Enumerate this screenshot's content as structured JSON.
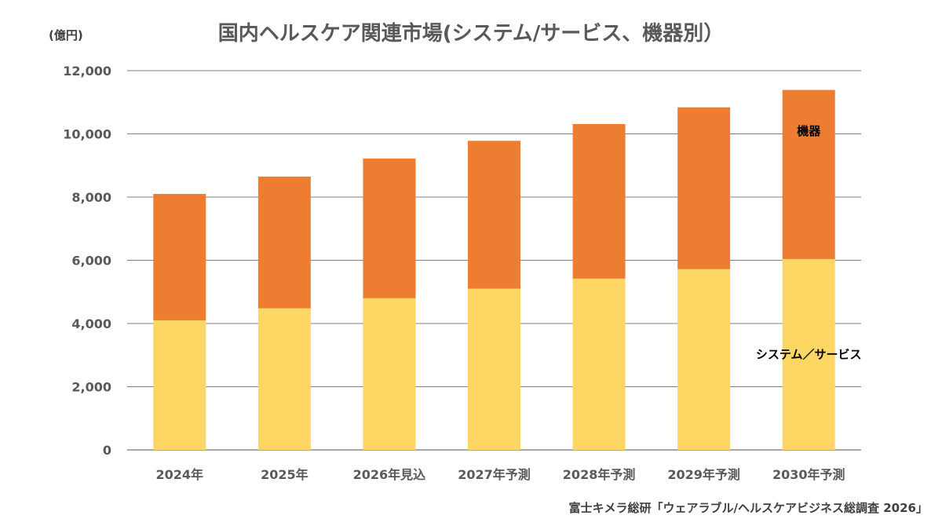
{
  "chart_data": {
    "type": "bar",
    "stacked": true,
    "title": "国内ヘルスケア関連市場(システム/サービス、機器別）",
    "unit": "(億円)",
    "source": "富士キメラ総研「ウェアラブル/ヘルスケアビジネス総調査 2026」",
    "categories": [
      "2024年",
      "2025年",
      "2026年見込",
      "2027年予測",
      "2028年予測",
      "2029年予測",
      "2030年予測"
    ],
    "series": [
      {
        "name": "システム／サービス",
        "color": "#FDD663",
        "values": [
          4100,
          4480,
          4800,
          5100,
          5420,
          5720,
          6040
        ]
      },
      {
        "name": "機器",
        "color": "#ED7D31",
        "values": [
          4000,
          4170,
          4420,
          4680,
          4890,
          5120,
          5350
        ]
      }
    ],
    "ylim": [
      0,
      12000
    ],
    "yticks": [
      0,
      2000,
      4000,
      6000,
      8000,
      10000,
      12000
    ],
    "ytick_labels": [
      "0",
      "2,000",
      "4,000",
      "6,000",
      "8,000",
      "10,000",
      "12,000"
    ],
    "grid": true,
    "legend": "inline labels on last bar"
  }
}
